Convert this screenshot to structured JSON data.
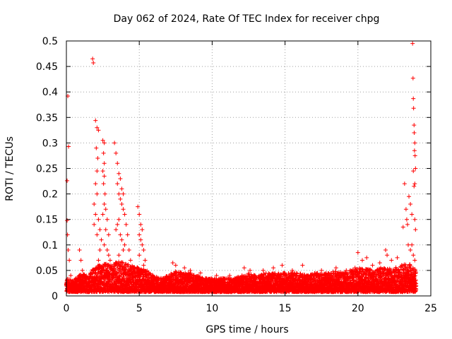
{
  "chart_data": {
    "type": "scatter",
    "title": "Day 062 of 2024, Rate Of TEC Index for receiver chpg",
    "xlabel": "GPS time / hours",
    "ylabel": "ROTI / TECUs",
    "xlim": [
      0,
      25
    ],
    "ylim": [
      0,
      0.5
    ],
    "x_ticks": [
      "0",
      "5",
      "10",
      "15",
      "20",
      "25"
    ],
    "y_ticks": [
      "0",
      "0.05",
      "0.1",
      "0.15",
      "0.2",
      "0.25",
      "0.3",
      "0.35",
      "0.4",
      "0.45",
      "0.5"
    ],
    "grid": true,
    "marker": "+",
    "color": "#ff0000",
    "series": [
      {
        "name": "ROTI",
        "points": [
          [
            0.1,
            0.392
          ],
          [
            0.15,
            0.293
          ],
          [
            0.05,
            0.226
          ],
          [
            0.05,
            0.148
          ],
          [
            0.08,
            0.12
          ],
          [
            0.12,
            0.09
          ],
          [
            0.2,
            0.07
          ],
          [
            0.3,
            0.04
          ],
          [
            0.9,
            0.09
          ],
          [
            1.0,
            0.07
          ],
          [
            1.1,
            0.05
          ],
          [
            1.8,
            0.465
          ],
          [
            1.85,
            0.457
          ],
          [
            2.0,
            0.344
          ],
          [
            2.1,
            0.33
          ],
          [
            2.2,
            0.325
          ],
          [
            2.05,
            0.29
          ],
          [
            2.15,
            0.27
          ],
          [
            2.1,
            0.245
          ],
          [
            2.0,
            0.22
          ],
          [
            2.1,
            0.2
          ],
          [
            1.9,
            0.18
          ],
          [
            2.0,
            0.16
          ],
          [
            1.9,
            0.14
          ],
          [
            2.1,
            0.12
          ],
          [
            2.2,
            0.15
          ],
          [
            2.3,
            0.13
          ],
          [
            2.4,
            0.11
          ],
          [
            2.3,
            0.09
          ],
          [
            2.2,
            0.07
          ],
          [
            2.5,
            0.305
          ],
          [
            2.6,
            0.3
          ],
          [
            2.55,
            0.28
          ],
          [
            2.6,
            0.26
          ],
          [
            2.5,
            0.245
          ],
          [
            2.6,
            0.235
          ],
          [
            2.55,
            0.22
          ],
          [
            2.65,
            0.2
          ],
          [
            2.6,
            0.18
          ],
          [
            2.7,
            0.17
          ],
          [
            2.5,
            0.16
          ],
          [
            2.8,
            0.15
          ],
          [
            2.7,
            0.13
          ],
          [
            2.9,
            0.12
          ],
          [
            2.6,
            0.1
          ],
          [
            2.8,
            0.09
          ],
          [
            2.9,
            0.08
          ],
          [
            3.0,
            0.07
          ],
          [
            3.3,
            0.3
          ],
          [
            3.4,
            0.28
          ],
          [
            3.5,
            0.26
          ],
          [
            3.6,
            0.24
          ],
          [
            3.7,
            0.23
          ],
          [
            3.5,
            0.22
          ],
          [
            3.6,
            0.2
          ],
          [
            3.8,
            0.21
          ],
          [
            3.9,
            0.2
          ],
          [
            3.7,
            0.19
          ],
          [
            3.8,
            0.18
          ],
          [
            3.9,
            0.17
          ],
          [
            4.0,
            0.16
          ],
          [
            3.6,
            0.15
          ],
          [
            3.5,
            0.14
          ],
          [
            3.4,
            0.13
          ],
          [
            3.7,
            0.12
          ],
          [
            3.8,
            0.11
          ],
          [
            4.1,
            0.14
          ],
          [
            4.2,
            0.12
          ],
          [
            4.0,
            0.1
          ],
          [
            3.9,
            0.09
          ],
          [
            3.6,
            0.08
          ],
          [
            4.3,
            0.09
          ],
          [
            4.4,
            0.07
          ],
          [
            4.2,
            0.06
          ],
          [
            4.9,
            0.175
          ],
          [
            5.0,
            0.16
          ],
          [
            5.1,
            0.14
          ],
          [
            5.2,
            0.13
          ],
          [
            5.0,
            0.12
          ],
          [
            5.1,
            0.11
          ],
          [
            5.2,
            0.1
          ],
          [
            5.3,
            0.09
          ],
          [
            5.0,
            0.08
          ],
          [
            5.4,
            0.07
          ],
          [
            5.3,
            0.06
          ],
          [
            7.3,
            0.065
          ],
          [
            7.5,
            0.06
          ],
          [
            8.1,
            0.055
          ],
          [
            8.5,
            0.05
          ],
          [
            9.2,
            0.045
          ],
          [
            10.3,
            0.04
          ],
          [
            11.2,
            0.04
          ],
          [
            12.2,
            0.055
          ],
          [
            12.6,
            0.05
          ],
          [
            13.5,
            0.05
          ],
          [
            14.2,
            0.055
          ],
          [
            14.8,
            0.06
          ],
          [
            15.5,
            0.05
          ],
          [
            16.2,
            0.06
          ],
          [
            17.5,
            0.05
          ],
          [
            18.5,
            0.055
          ],
          [
            19.2,
            0.05
          ],
          [
            19.8,
            0.055
          ],
          [
            20.0,
            0.085
          ],
          [
            20.3,
            0.07
          ],
          [
            20.6,
            0.075
          ],
          [
            21.0,
            0.06
          ],
          [
            21.5,
            0.065
          ],
          [
            21.9,
            0.09
          ],
          [
            22.0,
            0.08
          ],
          [
            22.3,
            0.07
          ],
          [
            22.7,
            0.075
          ],
          [
            23.0,
            0.06
          ],
          [
            23.1,
            0.135
          ],
          [
            23.2,
            0.22
          ],
          [
            23.3,
            0.17
          ],
          [
            23.35,
            0.15
          ],
          [
            23.4,
            0.14
          ],
          [
            23.45,
            0.1
          ],
          [
            23.5,
            0.195
          ],
          [
            23.6,
            0.18
          ],
          [
            23.7,
            0.16
          ],
          [
            23.75,
            0.495
          ],
          [
            23.78,
            0.427
          ],
          [
            23.8,
            0.387
          ],
          [
            23.82,
            0.368
          ],
          [
            23.85,
            0.335
          ],
          [
            23.86,
            0.32
          ],
          [
            23.9,
            0.3
          ],
          [
            23.88,
            0.285
          ],
          [
            23.92,
            0.275
          ],
          [
            23.95,
            0.25
          ],
          [
            23.8,
            0.245
          ],
          [
            23.9,
            0.22
          ],
          [
            23.85,
            0.215
          ],
          [
            23.9,
            0.15
          ],
          [
            23.95,
            0.13
          ],
          [
            23.7,
            0.1
          ],
          [
            23.6,
            0.09
          ],
          [
            23.8,
            0.08
          ],
          [
            23.9,
            0.07
          ]
        ]
      }
    ],
    "band_profile": [
      [
        0,
        0.035
      ],
      [
        0.5,
        0.03
      ],
      [
        1,
        0.045
      ],
      [
        1.5,
        0.04
      ],
      [
        2,
        0.06
      ],
      [
        2.5,
        0.065
      ],
      [
        3,
        0.06
      ],
      [
        3.5,
        0.07
      ],
      [
        4,
        0.065
      ],
      [
        4.5,
        0.06
      ],
      [
        5,
        0.055
      ],
      [
        5.5,
        0.05
      ],
      [
        6,
        0.04
      ],
      [
        6.5,
        0.035
      ],
      [
        7,
        0.04
      ],
      [
        7.5,
        0.05
      ],
      [
        8,
        0.045
      ],
      [
        8.5,
        0.045
      ],
      [
        9,
        0.04
      ],
      [
        9.5,
        0.035
      ],
      [
        10,
        0.035
      ],
      [
        10.5,
        0.035
      ],
      [
        11,
        0.035
      ],
      [
        11.5,
        0.035
      ],
      [
        12,
        0.04
      ],
      [
        12.5,
        0.045
      ],
      [
        13,
        0.04
      ],
      [
        13.5,
        0.045
      ],
      [
        14,
        0.045
      ],
      [
        14.5,
        0.045
      ],
      [
        15,
        0.045
      ],
      [
        15.5,
        0.045
      ],
      [
        16,
        0.045
      ],
      [
        16.5,
        0.04
      ],
      [
        17,
        0.045
      ],
      [
        17.5,
        0.045
      ],
      [
        18,
        0.045
      ],
      [
        18.5,
        0.05
      ],
      [
        19,
        0.045
      ],
      [
        19.5,
        0.05
      ],
      [
        20,
        0.055
      ],
      [
        20.5,
        0.055
      ],
      [
        21,
        0.05
      ],
      [
        21.5,
        0.055
      ],
      [
        22,
        0.055
      ],
      [
        22.5,
        0.055
      ],
      [
        23,
        0.06
      ],
      [
        23.5,
        0.065
      ],
      [
        24,
        0.05
      ]
    ]
  }
}
